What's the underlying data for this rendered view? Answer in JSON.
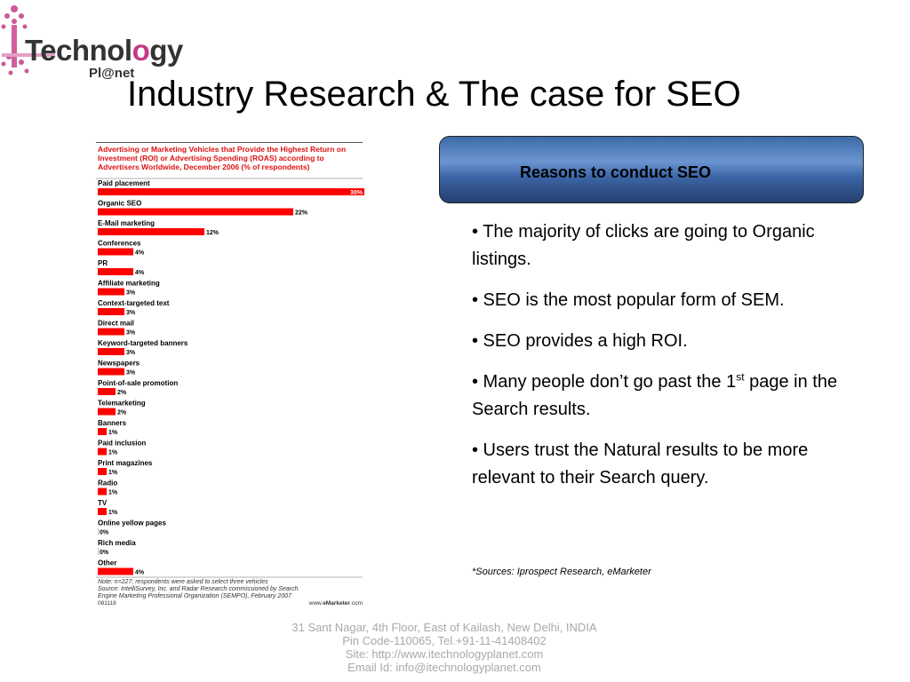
{
  "logo": {
    "word_part1": "Technol",
    "word_o": "o",
    "word_part2": "gy",
    "sub": "Pl@net"
  },
  "slide": {
    "title": "Industry Research & The case for SEO"
  },
  "chart_data": {
    "type": "bar",
    "orientation": "horizontal",
    "title": "Advertising or Marketing Vehicles that Provide the Highest Return on Investment (ROI) or Advertising Spending (ROAS) according to Advertisers Worldwide, December 2006 (% of respondents)",
    "categories": [
      "Paid placement",
      "Organic SEO",
      "E-Mail marketing",
      "Conferences",
      "PR",
      "Affiliate marketing",
      "Context-targeted text",
      "Direct mail",
      "Keyword-targeted banners",
      "Newspapers",
      "Point-of-sale promotion",
      "Telemarketing",
      "Banners",
      "Paid inclusion",
      "Print magazines",
      "Radio",
      "TV",
      "Online yellow pages",
      "Rich media",
      "Other"
    ],
    "values": [
      30,
      22,
      12,
      4,
      4,
      3,
      3,
      3,
      3,
      3,
      2,
      2,
      1,
      1,
      1,
      1,
      1,
      0,
      0,
      4
    ],
    "value_labels": [
      "30%",
      "22%",
      "12%",
      "4%",
      "4%",
      "3%",
      "3%",
      "3%",
      "3%",
      "3%",
      "2%",
      "2%",
      "1%",
      "1%",
      "1%",
      "1%",
      "1%",
      "0%",
      "0%",
      "4%"
    ],
    "xlim": [
      0,
      30
    ],
    "bar_color": "#ff0000",
    "notes": [
      "Note: n=227; respondents were asked to select three vehicles",
      "Source: IntelliSurvey, Inc. and Radar Research commissioned by Search",
      "Engine Marketing Professional Organization (SEMPO), February 2007"
    ],
    "footer_id": "081118",
    "footer_site_pre": "www.",
    "footer_site_brand": "eMarketer",
    "footer_site_post": ".com"
  },
  "reasons": {
    "title": "Reasons to conduct SEO",
    "bullets": [
      {
        "text": "• The majority of clicks are going to Organic listings."
      },
      {
        "text": "• SEO is the most popular form of SEM."
      },
      {
        "text": "• SEO provides a high ROI."
      },
      {
        "text_before": "• Many people don’t go past the 1",
        "sup": "st",
        "text_after": " page in the Search results."
      },
      {
        "text": "• Users trust the Natural results to be more relevant to their Search query."
      }
    ],
    "sources": "*Sources: Iprospect Research, eMarketer"
  },
  "address": {
    "line1": "31 Sant Nagar, 4th Floor, East of Kailash, New Delhi, INDIA",
    "line2": "Pin Code-110065, Tel.+91-11-41408402",
    "line3": "Site: http://www.itechnologyplanet.com",
    "line4": "Email Id: info@itechnologyplanet.com"
  },
  "colors": {
    "accent_red": "#ff0000",
    "panel_blue": "#3e6aa9",
    "logo_pink": "#c23b86"
  }
}
